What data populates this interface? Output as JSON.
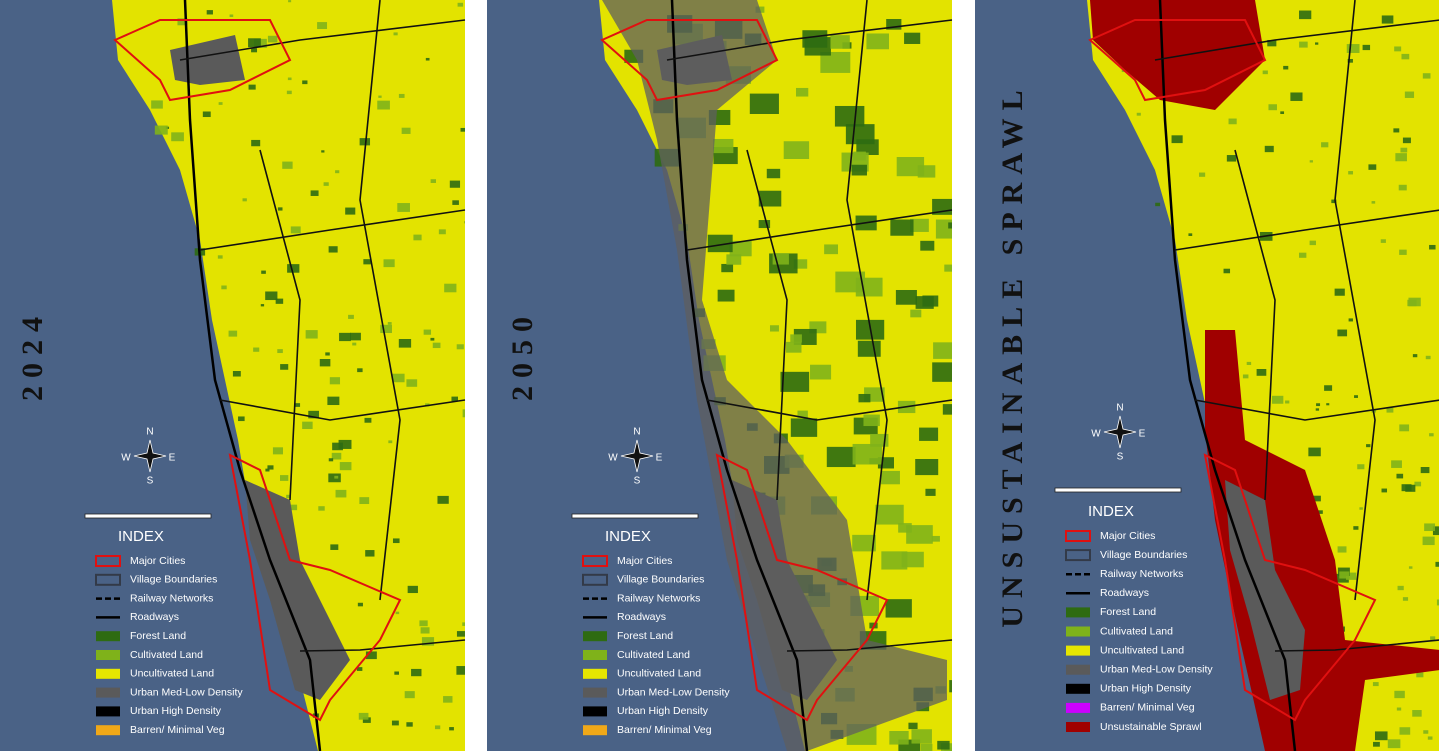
{
  "panels": [
    {
      "title": "2024",
      "compass": {
        "n": "N",
        "s": "S",
        "e": "E",
        "w": "W"
      },
      "legend": {
        "title": "INDEX",
        "items": [
          {
            "label": "Major Cities",
            "color": "#e01010",
            "swatch": "outline"
          },
          {
            "label": "Village Boundaries",
            "color": "#333a48",
            "swatch": "outline"
          },
          {
            "label": "Railway Networks",
            "color": "#000000",
            "swatch": "dash"
          },
          {
            "label": "Roadways",
            "color": "#000000",
            "swatch": "line"
          },
          {
            "label": "Forest Land",
            "color": "#2e6b12",
            "swatch": "fill"
          },
          {
            "label": "Cultivated Land",
            "color": "#7fb21a",
            "swatch": "fill"
          },
          {
            "label": "Uncultivated Land",
            "color": "#e6e600",
            "swatch": "fill"
          },
          {
            "label": "Urban Med-Low Density",
            "color": "#5a5a5a",
            "swatch": "fill"
          },
          {
            "label": "Urban High Density",
            "color": "#000000",
            "swatch": "fill"
          },
          {
            "label": "Barren/ Minimal Veg",
            "color": "#f0a818",
            "swatch": "fill"
          }
        ]
      }
    },
    {
      "title": "2050",
      "compass": {
        "n": "N",
        "s": "S",
        "e": "E",
        "w": "W"
      },
      "legend": {
        "title": "INDEX",
        "items": [
          {
            "label": "Major Cities",
            "color": "#e01010",
            "swatch": "outline"
          },
          {
            "label": "Village Boundaries",
            "color": "#333a48",
            "swatch": "outline"
          },
          {
            "label": "Railway Networks",
            "color": "#000000",
            "swatch": "dash"
          },
          {
            "label": "Roadways",
            "color": "#000000",
            "swatch": "line"
          },
          {
            "label": "Forest Land",
            "color": "#2e6b12",
            "swatch": "fill"
          },
          {
            "label": "Cultivated Land",
            "color": "#7fb21a",
            "swatch": "fill"
          },
          {
            "label": "Uncultivated Land",
            "color": "#e6e600",
            "swatch": "fill"
          },
          {
            "label": "Urban Med-Low Density",
            "color": "#5a5a5a",
            "swatch": "fill"
          },
          {
            "label": "Urban High Density",
            "color": "#000000",
            "swatch": "fill"
          },
          {
            "label": "Barren/ Minimal Veg",
            "color": "#f0a818",
            "swatch": "fill"
          }
        ]
      }
    },
    {
      "title": "UNSUSTAINABLE SPRAWL",
      "compass": {
        "n": "N",
        "s": "S",
        "e": "E",
        "w": "W"
      },
      "legend": {
        "title": "INDEX",
        "items": [
          {
            "label": "Major Cities",
            "color": "#e01010",
            "swatch": "outline"
          },
          {
            "label": "Village Boundaries",
            "color": "#333a48",
            "swatch": "outline"
          },
          {
            "label": "Railway Networks",
            "color": "#000000",
            "swatch": "dash"
          },
          {
            "label": "Roadways",
            "color": "#000000",
            "swatch": "line"
          },
          {
            "label": "Forest Land",
            "color": "#2e6b12",
            "swatch": "fill"
          },
          {
            "label": "Cultivated Land",
            "color": "#7fb21a",
            "swatch": "fill"
          },
          {
            "label": "Uncultivated Land",
            "color": "#e6e600",
            "swatch": "fill"
          },
          {
            "label": "Urban Med-Low Density",
            "color": "#5a5a5a",
            "swatch": "fill"
          },
          {
            "label": "Urban High Density",
            "color": "#000000",
            "swatch": "fill"
          },
          {
            "label": "Barren/ Minimal Veg",
            "color": "#cc00ff",
            "swatch": "fill"
          },
          {
            "label": "Unsustainable Sprawl",
            "color": "#a00000",
            "swatch": "fill"
          }
        ]
      }
    }
  ]
}
